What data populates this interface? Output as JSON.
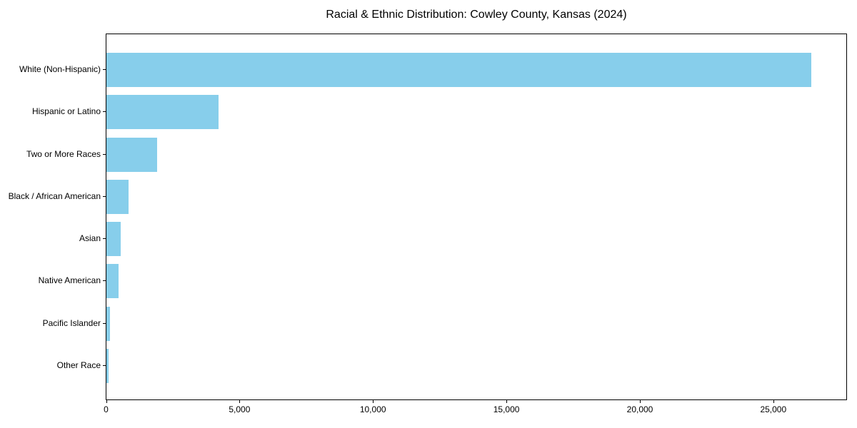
{
  "chart_data": {
    "type": "bar",
    "orientation": "horizontal",
    "title": "Racial & Ethnic Distribution: Cowley County, Kansas (2024)",
    "xlabel": "",
    "ylabel": "",
    "categories": [
      "White (Non-Hispanic)",
      "Hispanic or Latino",
      "Two or More Races",
      "Black / African American",
      "Asian",
      "Native American",
      "Pacific Islander",
      "Other Race"
    ],
    "values": [
      26400,
      4200,
      1890,
      820,
      530,
      450,
      130,
      70
    ],
    "xlim": [
      0,
      27720
    ],
    "x_ticks": [
      0,
      5000,
      10000,
      15000,
      20000,
      25000
    ],
    "x_tick_labels": [
      "0",
      "5,000",
      "10,000",
      "15,000",
      "20,000",
      "25,000"
    ],
    "bar_color": "#87CEEB",
    "border_color": "#000000",
    "background": "#FFFFFF",
    "grid": false,
    "legend": "none"
  }
}
